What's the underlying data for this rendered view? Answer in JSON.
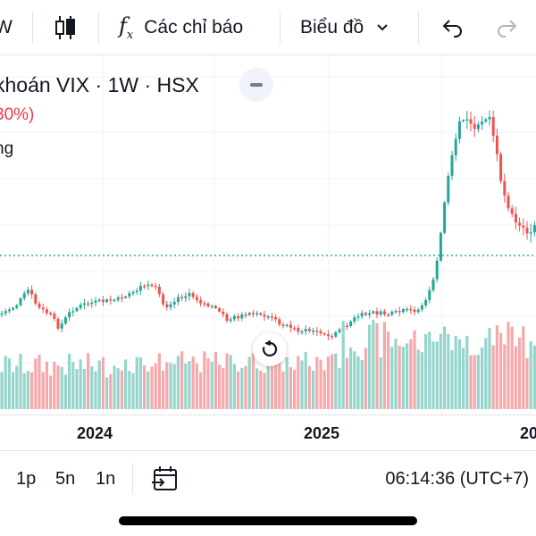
{
  "toolbar": {
    "interval_partial": "W",
    "indicators_label": "Các chỉ báo",
    "chart_type_label": "Biểu đồ",
    "fx_symbol": "f"
  },
  "legend": {
    "title": "khoán VIX · 1W · HSX",
    "change": "30%)",
    "volume_label": "ng"
  },
  "axis": {
    "x_labels": [
      "2024",
      "2025",
      "20"
    ]
  },
  "ranges": [
    "1p",
    "5n",
    "1n"
  ],
  "clock": "06:14:36 (UTC+7)",
  "colors": {
    "up": "#26a69a",
    "down": "#ef5350",
    "vol_up": "#95d5cc",
    "vol_down": "#f5a9ab",
    "price_line": "#089981",
    "grid": "#f0f3fa"
  },
  "chart_data": {
    "type": "candlestick",
    "symbol": "VIX",
    "interval": "1W",
    "exchange": "HSX",
    "x_ticks": [
      "2024",
      "2025",
      "20"
    ],
    "grid": true
  }
}
